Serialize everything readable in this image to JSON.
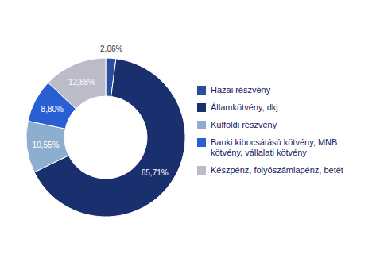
{
  "chart_data": {
    "type": "pie",
    "categories": [
      "Hazai részvény",
      "Államkötvény, dkj",
      "Külföldi részvény",
      "Banki kibocsátású kötvény, MNB\nkötvény, vállalati kötvény",
      "Készpénz, folyószámlapénz, betét"
    ],
    "values": [
      2.06,
      65.71,
      10.55,
      8.8,
      12.88
    ],
    "value_labels": [
      "2,06%",
      "65,71%",
      "10,55%",
      "8,80%",
      "12,88%"
    ],
    "colors": [
      "#2a4d9e",
      "#1a2f6e",
      "#8eaecf",
      "#2a5fd4",
      "#bcbcc8"
    ],
    "legend": "right",
    "data_labels": true
  }
}
